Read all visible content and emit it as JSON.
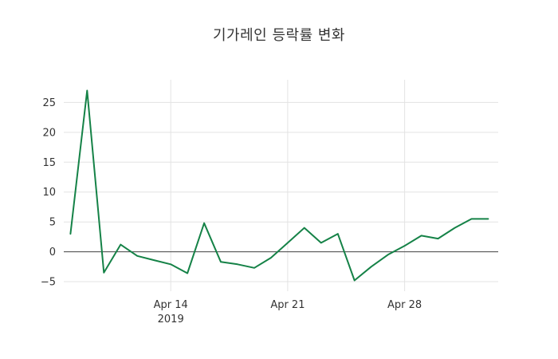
{
  "page": {
    "background": "#ffffff"
  },
  "chart_data": {
    "type": "line",
    "title": "기가레인 등락률 변화",
    "xlabel": "",
    "ylabel": "",
    "grid": true,
    "legend": false,
    "plot_bg": "#ffffff",
    "grid_color": "#e3e3e3",
    "zeroline_color": "#444444",
    "text_color": "#333333",
    "ylim": [
      -6.6,
      28.8
    ],
    "xlim_days": [
      -0.4,
      25.6
    ],
    "x_ticks": [
      {
        "day_index": 6,
        "label": "Apr 14",
        "sublabel": "2019"
      },
      {
        "day_index": 13,
        "label": "Apr 21",
        "sublabel": ""
      },
      {
        "day_index": 20,
        "label": "Apr 28",
        "sublabel": ""
      }
    ],
    "y_ticks": [
      {
        "value": -5,
        "label": "−5"
      },
      {
        "value": 0,
        "label": "0"
      },
      {
        "value": 5,
        "label": "5"
      },
      {
        "value": 10,
        "label": "10"
      },
      {
        "value": 15,
        "label": "15"
      },
      {
        "value": 20,
        "label": "20"
      },
      {
        "value": 25,
        "label": "25"
      }
    ],
    "series": [
      {
        "name": "등락률",
        "color": "#158247",
        "x": [
          "2019-04-08",
          "2019-04-09",
          "2019-04-10",
          "2019-04-11",
          "2019-04-12",
          "2019-04-13",
          "2019-04-14",
          "2019-04-15",
          "2019-04-16",
          "2019-04-17",
          "2019-04-18",
          "2019-04-19",
          "2019-04-20",
          "2019-04-21",
          "2019-04-22",
          "2019-04-23",
          "2019-04-24",
          "2019-04-25",
          "2019-04-26",
          "2019-04-27",
          "2019-04-28",
          "2019-04-29",
          "2019-04-30",
          "2019-05-01",
          "2019-05-02",
          "2019-05-03"
        ],
        "values": [
          3.0,
          27.0,
          -3.5,
          1.2,
          -0.7,
          -1.4,
          -2.1,
          -3.6,
          4.8,
          -1.7,
          -2.1,
          -2.7,
          -1.0,
          1.5,
          4.0,
          1.5,
          3.0,
          -4.8,
          -2.5,
          -0.5,
          1.0,
          2.7,
          2.2,
          4.0,
          5.5,
          5.5
        ]
      }
    ]
  }
}
